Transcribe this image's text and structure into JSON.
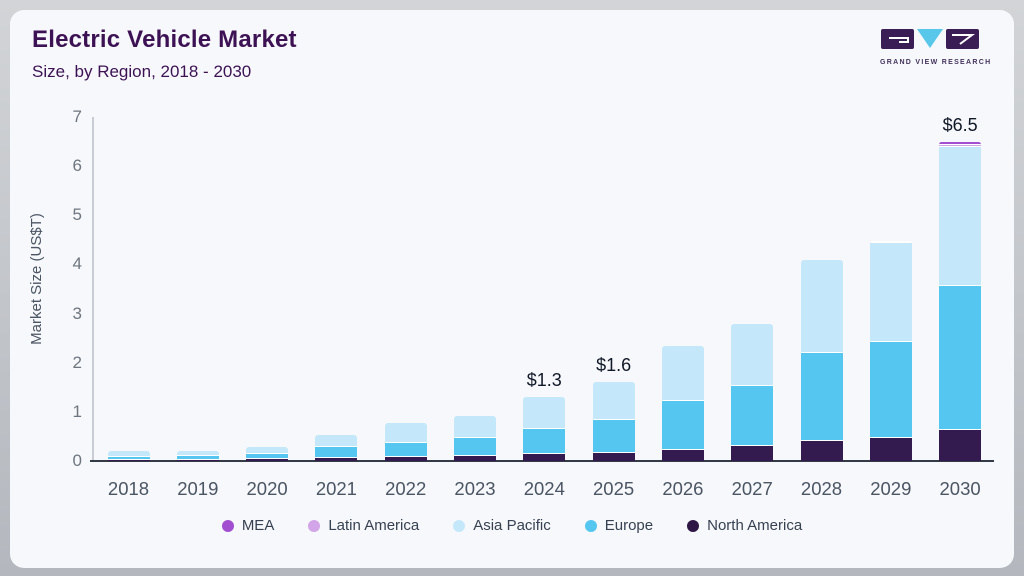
{
  "header": {
    "title": "Electric Vehicle Market",
    "subtitle": "Size, by Region, 2018 - 2030"
  },
  "logo": {
    "text": "GRAND VIEW RESEARCH"
  },
  "chart_data": {
    "type": "bar",
    "stacked": true,
    "title": "Electric Vehicle Market Size, by Region, 2018 - 2030",
    "xlabel": "",
    "ylabel": "Market Size (US$T)",
    "ylim": [
      0,
      7
    ],
    "yticks": [
      0,
      1,
      2,
      3,
      4,
      5,
      6,
      7
    ],
    "grid": false,
    "legend_position": "bottom",
    "categories": [
      "2018",
      "2019",
      "2020",
      "2021",
      "2022",
      "2023",
      "2024",
      "2025",
      "2026",
      "2027",
      "2028",
      "2029",
      "2030"
    ],
    "series": [
      {
        "name": "North America",
        "color": "#331b4f",
        "values": [
          0.03,
          0.03,
          0.05,
          0.06,
          0.09,
          0.11,
          0.14,
          0.17,
          0.23,
          0.3,
          0.4,
          0.46,
          0.64
        ]
      },
      {
        "name": "Europe",
        "color": "#55c6ef",
        "values": [
          0.06,
          0.07,
          0.1,
          0.22,
          0.28,
          0.36,
          0.52,
          0.66,
          1.0,
          1.22,
          1.8,
          1.97,
          2.92
        ]
      },
      {
        "name": "Asia Pacific",
        "color": "#c4e8f9",
        "values": [
          0.11,
          0.1,
          0.13,
          0.24,
          0.4,
          0.45,
          0.64,
          0.77,
          1.12,
          1.26,
          1.9,
          2.0,
          2.82
        ]
      },
      {
        "name": "Latin America",
        "color": "#d2a5e9",
        "values": [
          0,
          0,
          0,
          0,
          0,
          0,
          0,
          0,
          0,
          0,
          0,
          0.03,
          0.06
        ]
      },
      {
        "name": "MEA",
        "color": "#a14fd0",
        "values": [
          0,
          0,
          0,
          0,
          0,
          0,
          0,
          0,
          0,
          0,
          0,
          0.02,
          0.06
        ]
      }
    ],
    "totals": [
      0.2,
      0.2,
      0.28,
      0.52,
      0.77,
      0.92,
      1.3,
      1.6,
      2.35,
      2.78,
      4.1,
      4.48,
      6.5
    ],
    "annotations": [
      {
        "category": "2024",
        "label": "$1.3"
      },
      {
        "category": "2025",
        "label": "$1.6"
      },
      {
        "category": "2030",
        "label": "$6.5"
      }
    ],
    "legend": [
      {
        "name": "MEA",
        "color": "#a14fd0"
      },
      {
        "name": "Latin America",
        "color": "#d2a5e9"
      },
      {
        "name": "Asia Pacific",
        "color": "#c4e8f9"
      },
      {
        "name": "Europe",
        "color": "#55c6ef"
      },
      {
        "name": "North America",
        "color": "#2e1745"
      }
    ]
  }
}
